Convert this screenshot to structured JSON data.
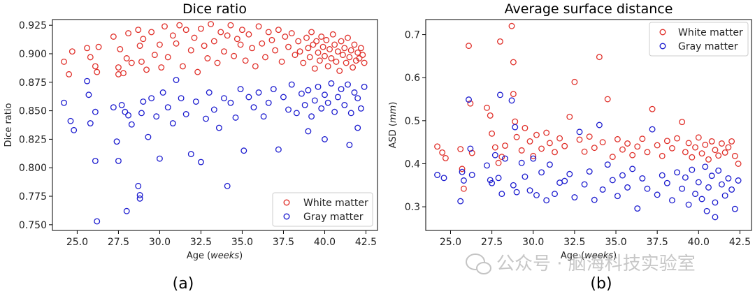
{
  "chart_data": [
    {
      "type": "scatter",
      "title": "Dice ratio",
      "xlabel_prefix": "Age (",
      "xlabel_unit": "weeks",
      "xlabel_suffix": ")",
      "ylabel": "Dice ratio",
      "xlim": [
        23.5,
        43.2
      ],
      "ylim": [
        0.745,
        0.93
      ],
      "xticks": [
        25.0,
        27.5,
        30.0,
        32.5,
        35.0,
        37.5,
        40.0,
        42.5
      ],
      "xtick_labels": [
        "25.0",
        "27.5",
        "30.0",
        "32.5",
        "35.0",
        "37.5",
        "40.0",
        "42.5"
      ],
      "yticks": [
        0.75,
        0.775,
        0.8,
        0.825,
        0.85,
        0.875,
        0.9,
        0.925
      ],
      "ytick_labels": [
        "0.750",
        "0.775",
        "0.800",
        "0.825",
        "0.850",
        "0.875",
        "0.900",
        "0.925"
      ],
      "legend_position": "bottom-right",
      "panel_label": "(a)",
      "series": [
        {
          "name": "White matter",
          "color": "#e0302a",
          "x": [
            24.2,
            24.5,
            24.7,
            25.6,
            25.8,
            26.1,
            26.2,
            26.3,
            27.2,
            27.5,
            27.5,
            27.6,
            27.8,
            28.0,
            28.1,
            28.3,
            28.7,
            28.8,
            28.9,
            29.0,
            29.2,
            29.5,
            29.7,
            30.0,
            30.1,
            30.3,
            30.5,
            30.8,
            31.0,
            31.2,
            31.4,
            31.6,
            31.9,
            32.1,
            32.3,
            32.5,
            32.7,
            32.9,
            33.1,
            33.3,
            33.5,
            33.7,
            33.9,
            34.1,
            34.3,
            34.5,
            34.7,
            34.9,
            35.0,
            35.2,
            35.4,
            35.6,
            35.8,
            36.0,
            36.2,
            36.4,
            36.6,
            36.8,
            37.0,
            37.2,
            37.4,
            37.6,
            37.8,
            38.0,
            38.2,
            38.4,
            38.5,
            38.7,
            38.9,
            39.0,
            39.1,
            39.2,
            39.3,
            39.4,
            39.5,
            39.6,
            39.7,
            39.8,
            39.9,
            40.0,
            40.1,
            40.2,
            40.3,
            40.4,
            40.5,
            40.6,
            40.7,
            40.8,
            40.9,
            41.0,
            41.1,
            41.2,
            41.3,
            41.4,
            41.5,
            41.6,
            41.7,
            41.8,
            41.9,
            42.0,
            42.1,
            42.2,
            42.3,
            42.4
          ],
          "y": [
            0.893,
            0.882,
            0.902,
            0.905,
            0.897,
            0.889,
            0.884,
            0.906,
            0.915,
            0.888,
            0.882,
            0.904,
            0.883,
            0.896,
            0.918,
            0.892,
            0.921,
            0.907,
            0.893,
            0.913,
            0.886,
            0.919,
            0.899,
            0.908,
            0.888,
            0.924,
            0.897,
            0.916,
            0.909,
            0.925,
            0.889,
            0.921,
            0.903,
            0.914,
            0.884,
            0.922,
            0.907,
            0.896,
            0.926,
            0.911,
            0.892,
            0.919,
            0.902,
            0.916,
            0.925,
            0.898,
            0.913,
            0.908,
            0.921,
            0.894,
            0.917,
            0.905,
            0.889,
            0.924,
            0.909,
            0.897,
            0.919,
            0.912,
            0.903,
            0.921,
            0.893,
            0.915,
            0.906,
            0.918,
            0.899,
            0.911,
            0.902,
            0.892,
            0.914,
            0.905,
            0.897,
            0.919,
            0.908,
            0.887,
            0.911,
            0.901,
            0.894,
            0.915,
            0.906,
            0.898,
            0.912,
            0.889,
            0.904,
            0.896,
            0.917,
            0.908,
            0.893,
            0.902,
            0.885,
            0.911,
            0.899,
            0.905,
            0.892,
            0.914,
            0.897,
            0.903,
            0.888,
            0.908,
            0.894,
            0.901,
            0.896,
            0.905,
            0.899,
            0.892
          ]
        },
        {
          "name": "Gray matter",
          "color": "#1c1ccf",
          "x": [
            24.2,
            24.6,
            24.8,
            25.6,
            25.7,
            25.8,
            26.1,
            26.2,
            26.1,
            27.2,
            27.4,
            27.5,
            27.7,
            27.9,
            28.0,
            28.1,
            28.3,
            28.7,
            28.8,
            28.8,
            28.9,
            29.0,
            29.3,
            29.5,
            29.8,
            30.0,
            30.2,
            30.5,
            30.8,
            31.0,
            31.3,
            31.6,
            31.9,
            32.2,
            32.5,
            32.8,
            33.0,
            33.3,
            33.6,
            33.9,
            34.1,
            34.3,
            34.6,
            34.9,
            35.1,
            35.4,
            35.7,
            36.0,
            36.3,
            36.6,
            36.9,
            37.2,
            37.5,
            37.8,
            38.0,
            38.3,
            38.6,
            38.8,
            39.0,
            39.2,
            39.4,
            39.6,
            39.8,
            40.0,
            40.2,
            40.4,
            40.6,
            40.8,
            41.0,
            41.2,
            41.4,
            41.6,
            41.8,
            42.0,
            42.2,
            42.4,
            42.0,
            41.5,
            40.0,
            39.0
          ],
          "y": [
            0.857,
            0.841,
            0.833,
            0.876,
            0.864,
            0.839,
            0.806,
            0.753,
            0.849,
            0.853,
            0.823,
            0.806,
            0.855,
            0.849,
            0.762,
            0.846,
            0.838,
            0.784,
            0.776,
            0.773,
            0.848,
            0.858,
            0.827,
            0.861,
            0.845,
            0.808,
            0.866,
            0.853,
            0.839,
            0.877,
            0.861,
            0.847,
            0.812,
            0.858,
            0.805,
            0.843,
            0.866,
            0.851,
            0.835,
            0.861,
            0.784,
            0.857,
            0.844,
            0.869,
            0.815,
            0.862,
            0.853,
            0.866,
            0.845,
            0.857,
            0.869,
            0.816,
            0.862,
            0.851,
            0.873,
            0.848,
            0.865,
            0.855,
            0.868,
            0.845,
            0.859,
            0.871,
            0.852,
            0.864,
            0.857,
            0.874,
            0.849,
            0.862,
            0.869,
            0.855,
            0.873,
            0.848,
            0.866,
            0.861,
            0.852,
            0.871,
            0.835,
            0.82,
            0.825,
            0.832
          ]
        }
      ]
    },
    {
      "type": "scatter",
      "title": "Average surface distance",
      "xlabel_prefix": "Age (",
      "xlabel_unit": "weeks",
      "xlabel_suffix": ")",
      "ylabel_prefix": "ASD (",
      "ylabel_unit": "mm",
      "ylabel_suffix": ")",
      "xlim": [
        23.5,
        43.2
      ],
      "ylim": [
        0.245,
        0.735
      ],
      "xticks": [
        25.0,
        27.5,
        30.0,
        32.5,
        35.0,
        37.5,
        40.0,
        42.5
      ],
      "xtick_labels": [
        "25.0",
        "27.5",
        "30.0",
        "32.5",
        "35.0",
        "37.5",
        "40.0",
        "42.5"
      ],
      "yticks": [
        0.3,
        0.4,
        0.5,
        0.6,
        0.7
      ],
      "ytick_labels": [
        "0.3",
        "0.4",
        "0.5",
        "0.6",
        "0.7"
      ],
      "legend_position": "top-right",
      "panel_label": "(b)",
      "series": [
        {
          "name": "White matter",
          "color": "#e0302a",
          "x": [
            24.2,
            24.5,
            24.7,
            25.6,
            25.7,
            25.8,
            26.1,
            26.2,
            26.3,
            27.2,
            27.4,
            27.5,
            27.7,
            27.9,
            28.0,
            28.1,
            28.3,
            28.7,
            28.8,
            28.8,
            28.9,
            29.0,
            29.3,
            29.5,
            29.8,
            30.0,
            30.2,
            30.5,
            30.8,
            31.0,
            31.3,
            31.6,
            31.9,
            32.2,
            32.5,
            32.8,
            33.1,
            33.4,
            33.7,
            34.0,
            34.2,
            34.5,
            34.8,
            35.1,
            35.4,
            35.7,
            36.0,
            36.3,
            36.6,
            36.9,
            37.2,
            37.5,
            37.8,
            38.1,
            38.4,
            38.7,
            39.0,
            39.2,
            39.4,
            39.6,
            39.8,
            40.0,
            40.2,
            40.4,
            40.6,
            40.8,
            41.0,
            41.2,
            41.4,
            41.6,
            41.8,
            42.0,
            42.2,
            42.4
          ],
          "y": [
            0.44,
            0.426,
            0.413,
            0.434,
            0.388,
            0.342,
            0.674,
            0.54,
            0.425,
            0.53,
            0.512,
            0.47,
            0.438,
            0.402,
            0.684,
            0.416,
            0.442,
            0.72,
            0.636,
            0.562,
            0.498,
            0.462,
            0.431,
            0.483,
            0.452,
            0.418,
            0.467,
            0.435,
            0.472,
            0.448,
            0.427,
            0.459,
            0.441,
            0.509,
            0.59,
            0.456,
            0.428,
            0.463,
            0.437,
            0.648,
            0.45,
            0.55,
            0.416,
            0.457,
            0.433,
            0.447,
            0.42,
            0.44,
            0.458,
            0.427,
            0.527,
            0.443,
            0.418,
            0.453,
            0.436,
            0.459,
            0.497,
            0.427,
            0.448,
            0.415,
            0.438,
            0.461,
            0.424,
            0.444,
            0.41,
            0.452,
            0.432,
            0.419,
            0.447,
            0.426,
            0.438,
            0.452,
            0.418,
            0.4
          ]
        },
        {
          "name": "Gray matter",
          "color": "#1c1ccf",
          "x": [
            24.2,
            24.6,
            25.6,
            25.7,
            25.8,
            26.1,
            26.2,
            26.3,
            27.2,
            27.4,
            27.5,
            27.7,
            27.9,
            28.0,
            28.1,
            28.3,
            28.7,
            28.8,
            28.9,
            29.0,
            29.3,
            29.5,
            29.8,
            30.0,
            30.2,
            30.5,
            30.8,
            31.0,
            31.3,
            31.6,
            31.9,
            32.2,
            32.5,
            32.8,
            33.1,
            33.4,
            33.7,
            34.0,
            34.2,
            34.5,
            34.8,
            35.1,
            35.4,
            35.7,
            36.0,
            36.3,
            36.6,
            36.9,
            37.2,
            37.5,
            37.8,
            38.1,
            38.4,
            38.7,
            39.0,
            39.2,
            39.4,
            39.6,
            39.8,
            40.0,
            40.2,
            40.4,
            40.6,
            40.8,
            41.0,
            41.2,
            41.4,
            41.6,
            41.8,
            42.0,
            42.2,
            42.4,
            41.0,
            40.5
          ],
          "y": [
            0.374,
            0.367,
            0.313,
            0.381,
            0.361,
            0.549,
            0.435,
            0.374,
            0.396,
            0.362,
            0.355,
            0.42,
            0.367,
            0.56,
            0.33,
            0.412,
            0.547,
            0.35,
            0.485,
            0.334,
            0.402,
            0.37,
            0.338,
            0.412,
            0.327,
            0.38,
            0.315,
            0.398,
            0.33,
            0.356,
            0.36,
            0.376,
            0.322,
            0.474,
            0.352,
            0.382,
            0.316,
            0.49,
            0.34,
            0.398,
            0.362,
            0.325,
            0.373,
            0.345,
            0.388,
            0.296,
            0.366,
            0.342,
            0.48,
            0.328,
            0.373,
            0.355,
            0.315,
            0.38,
            0.342,
            0.368,
            0.305,
            0.386,
            0.33,
            0.357,
            0.318,
            0.393,
            0.345,
            0.372,
            0.31,
            0.384,
            0.352,
            0.326,
            0.366,
            0.34,
            0.295,
            0.361,
            0.276,
            0.29
          ]
        }
      ]
    }
  ],
  "watermark": "公众号 · 脑海科技实验室"
}
